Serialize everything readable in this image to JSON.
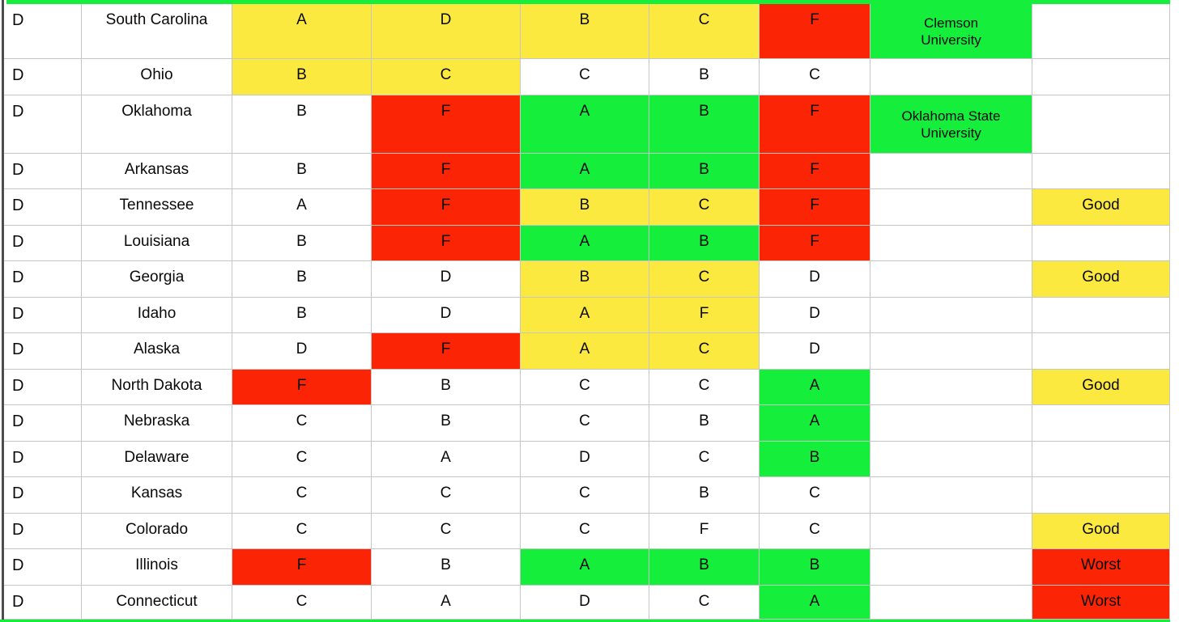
{
  "colors": {
    "yellow": "#FCE93F",
    "red": "#FB2505",
    "green": "#15EE3B",
    "grid": "#C6C6C6"
  },
  "table": {
    "rows": [
      {
        "overall": "D",
        "state": "South Carolina",
        "grades": [
          {
            "v": "A",
            "c": "yellow"
          },
          {
            "v": "D",
            "c": "yellow"
          },
          {
            "v": "B",
            "c": "yellow"
          },
          {
            "v": "C",
            "c": "yellow"
          },
          {
            "v": "F",
            "c": "red"
          }
        ],
        "university": {
          "text": "Clemson\nUniversity",
          "c": "green"
        },
        "label": null
      },
      {
        "overall": "D",
        "state": "Ohio",
        "grades": [
          {
            "v": "B",
            "c": "yellow"
          },
          {
            "v": "C",
            "c": "yellow"
          },
          {
            "v": "C",
            "c": "none"
          },
          {
            "v": "B",
            "c": "none"
          },
          {
            "v": "C",
            "c": "none"
          }
        ],
        "university": null,
        "label": null
      },
      {
        "overall": "D",
        "state": "Oklahoma",
        "grades": [
          {
            "v": "B",
            "c": "none"
          },
          {
            "v": "F",
            "c": "red"
          },
          {
            "v": "A",
            "c": "green"
          },
          {
            "v": "B",
            "c": "green"
          },
          {
            "v": "F",
            "c": "red"
          }
        ],
        "university": {
          "text": "Oklahoma State\nUniversity",
          "c": "green"
        },
        "label": null
      },
      {
        "overall": "D",
        "state": "Arkansas",
        "grades": [
          {
            "v": "B",
            "c": "none"
          },
          {
            "v": "F",
            "c": "red"
          },
          {
            "v": "A",
            "c": "green"
          },
          {
            "v": "B",
            "c": "green"
          },
          {
            "v": "F",
            "c": "red"
          }
        ],
        "university": null,
        "label": null
      },
      {
        "overall": "D",
        "state": "Tennessee",
        "grades": [
          {
            "v": "A",
            "c": "none"
          },
          {
            "v": "F",
            "c": "red"
          },
          {
            "v": "B",
            "c": "yellow"
          },
          {
            "v": "C",
            "c": "yellow"
          },
          {
            "v": "F",
            "c": "red"
          }
        ],
        "university": null,
        "label": {
          "text": "Good",
          "c": "yellow"
        }
      },
      {
        "overall": "D",
        "state": "Louisiana",
        "grades": [
          {
            "v": "B",
            "c": "none"
          },
          {
            "v": "F",
            "c": "red"
          },
          {
            "v": "A",
            "c": "green"
          },
          {
            "v": "B",
            "c": "green"
          },
          {
            "v": "F",
            "c": "red"
          }
        ],
        "university": null,
        "label": null
      },
      {
        "overall": "D",
        "state": "Georgia",
        "grades": [
          {
            "v": "B",
            "c": "none"
          },
          {
            "v": "D",
            "c": "none"
          },
          {
            "v": "B",
            "c": "yellow"
          },
          {
            "v": "C",
            "c": "yellow"
          },
          {
            "v": "D",
            "c": "none"
          }
        ],
        "university": null,
        "label": {
          "text": "Good",
          "c": "yellow"
        }
      },
      {
        "overall": "D",
        "state": "Idaho",
        "grades": [
          {
            "v": "B",
            "c": "none"
          },
          {
            "v": "D",
            "c": "none"
          },
          {
            "v": "A",
            "c": "yellow"
          },
          {
            "v": "F",
            "c": "yellow"
          },
          {
            "v": "D",
            "c": "none"
          }
        ],
        "university": null,
        "label": null
      },
      {
        "overall": "D",
        "state": "Alaska",
        "grades": [
          {
            "v": "D",
            "c": "none"
          },
          {
            "v": "F",
            "c": "red"
          },
          {
            "v": "A",
            "c": "yellow"
          },
          {
            "v": "C",
            "c": "yellow"
          },
          {
            "v": "D",
            "c": "none"
          }
        ],
        "university": null,
        "label": null
      },
      {
        "overall": "D",
        "state": "North Dakota",
        "grades": [
          {
            "v": "F",
            "c": "red"
          },
          {
            "v": "B",
            "c": "none"
          },
          {
            "v": "C",
            "c": "none"
          },
          {
            "v": "C",
            "c": "none"
          },
          {
            "v": "A",
            "c": "green"
          }
        ],
        "university": null,
        "label": {
          "text": "Good",
          "c": "yellow"
        }
      },
      {
        "overall": "D",
        "state": "Nebraska",
        "grades": [
          {
            "v": "C",
            "c": "none"
          },
          {
            "v": "B",
            "c": "none"
          },
          {
            "v": "C",
            "c": "none"
          },
          {
            "v": "B",
            "c": "none"
          },
          {
            "v": "A",
            "c": "green"
          }
        ],
        "university": null,
        "label": null
      },
      {
        "overall": "D",
        "state": "Delaware",
        "grades": [
          {
            "v": "C",
            "c": "none"
          },
          {
            "v": "A",
            "c": "none"
          },
          {
            "v": "D",
            "c": "none"
          },
          {
            "v": "C",
            "c": "none"
          },
          {
            "v": "B",
            "c": "green"
          }
        ],
        "university": null,
        "label": null
      },
      {
        "overall": "D",
        "state": "Kansas",
        "grades": [
          {
            "v": "C",
            "c": "none"
          },
          {
            "v": "C",
            "c": "none"
          },
          {
            "v": "C",
            "c": "none"
          },
          {
            "v": "B",
            "c": "none"
          },
          {
            "v": "C",
            "c": "none"
          }
        ],
        "university": null,
        "label": null
      },
      {
        "overall": "D",
        "state": "Colorado",
        "grades": [
          {
            "v": "C",
            "c": "none"
          },
          {
            "v": "C",
            "c": "none"
          },
          {
            "v": "C",
            "c": "none"
          },
          {
            "v": "F",
            "c": "none"
          },
          {
            "v": "C",
            "c": "none"
          }
        ],
        "university": null,
        "label": {
          "text": "Good",
          "c": "yellow"
        }
      },
      {
        "overall": "D",
        "state": "Illinois",
        "grades": [
          {
            "v": "F",
            "c": "red"
          },
          {
            "v": "B",
            "c": "none"
          },
          {
            "v": "A",
            "c": "green"
          },
          {
            "v": "B",
            "c": "green"
          },
          {
            "v": "B",
            "c": "green"
          }
        ],
        "university": null,
        "label": {
          "text": "Worst",
          "c": "red"
        }
      },
      {
        "overall": "D",
        "state": "Connecticut",
        "grades": [
          {
            "v": "C",
            "c": "none"
          },
          {
            "v": "A",
            "c": "none"
          },
          {
            "v": "D",
            "c": "none"
          },
          {
            "v": "C",
            "c": "none"
          },
          {
            "v": "A",
            "c": "green"
          }
        ],
        "university": null,
        "label": {
          "text": "Worst",
          "c": "red"
        }
      }
    ]
  }
}
